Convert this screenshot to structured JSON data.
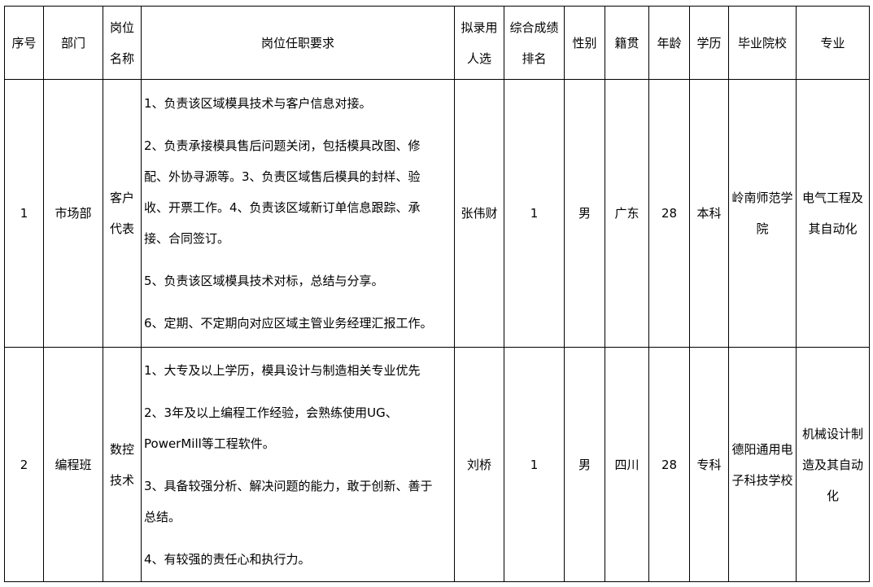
{
  "headers": [
    "序号",
    "部门",
    "岗位名称",
    "岗位任职要求",
    "拟录用人选",
    "综合成绩排名",
    "性别",
    "籍贯",
    "年龄",
    "学历",
    "毕业院校",
    "专业"
  ],
  "rows": [
    {
      "no": "1",
      "dept": "市场部",
      "position": "客户代表",
      "requirements": [
        [
          "1、负责该区域模具技术与客户信息对接。"
        ],
        [
          "2、负责承接模具售后问题关闭，包括模具改图、修",
          "配、外协寻源等。3、负责区域售后模具的封样、验",
          "收、开票工作。4、负责该区域新订单信息跟踪、承",
          "接、合同签订。"
        ],
        [
          "5、负责该区域模具技术对标，总结与分享。"
        ],
        [
          "6、定期、不定期向对应区域主管业务经理汇报工作。"
        ]
      ],
      "candidate": "张伟财",
      "rank": "1",
      "gender": "男",
      "origin": "广东",
      "age": "28",
      "education": "本科",
      "school": "岭南师范学院",
      "major": "电气工程及其自动化"
    },
    {
      "no": "2",
      "dept": "编程班",
      "position": "数控技术",
      "requirements": [
        [
          "1、大专及以上学历，模具设计与制造相关专业优先"
        ],
        [
          "2、3年及以上编程工作经验，会熟练使用UG、",
          "PowerMill等工程软件。"
        ],
        [
          "3、具备较强分析、解决问题的能力，敢于创新、善于",
          "总结。"
        ],
        [
          "4、有较强的责任心和执行力。"
        ]
      ],
      "candidate": "刘桥",
      "rank": "1",
      "gender": "男",
      "origin": "四川",
      "age": "28",
      "education": "专科",
      "school": "德阳通用电子科技学校",
      "major": "机械设计制造及其自动化"
    }
  ]
}
